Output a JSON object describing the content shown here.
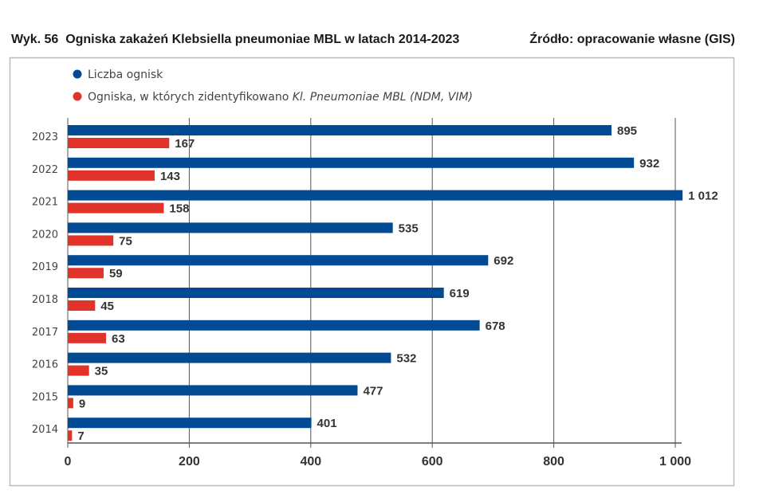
{
  "chart_data": {
    "type": "bar",
    "orientation": "horizontal",
    "title": "Wyk. 56  Ogniska zakażeń Klebsiella pneumoniae MBL w latach 2014-2023",
    "source": "Źródło: opracowanie własne (GIS)",
    "categories": [
      "2023",
      "2022",
      "2021",
      "2020",
      "2019",
      "2018",
      "2017",
      "2016",
      "2015",
      "2014"
    ],
    "series": [
      {
        "name": "Liczba ognisk",
        "color": "#004b93",
        "values": [
          895,
          932,
          1012,
          535,
          692,
          619,
          678,
          532,
          477,
          401
        ],
        "labels": [
          "895",
          "932",
          "1 012",
          "535",
          "692",
          "619",
          "678",
          "532",
          "477",
          "401"
        ]
      },
      {
        "name": "Ogniska, w których zidentyfikowano",
        "name_italic": "Kl. Pneumoniae MBL (NDM, VIM)",
        "color": "#e2332b",
        "values": [
          167,
          143,
          158,
          75,
          59,
          45,
          63,
          35,
          9,
          7
        ],
        "labels": [
          "167",
          "143",
          "158",
          "75",
          "59",
          "45",
          "63",
          "35",
          "9",
          "7"
        ]
      }
    ],
    "xlim": [
      0,
      1000
    ],
    "xticks": [
      "0",
      "200",
      "400",
      "600",
      "800",
      "1 000"
    ],
    "grid": true,
    "legend_position": "top-left"
  }
}
